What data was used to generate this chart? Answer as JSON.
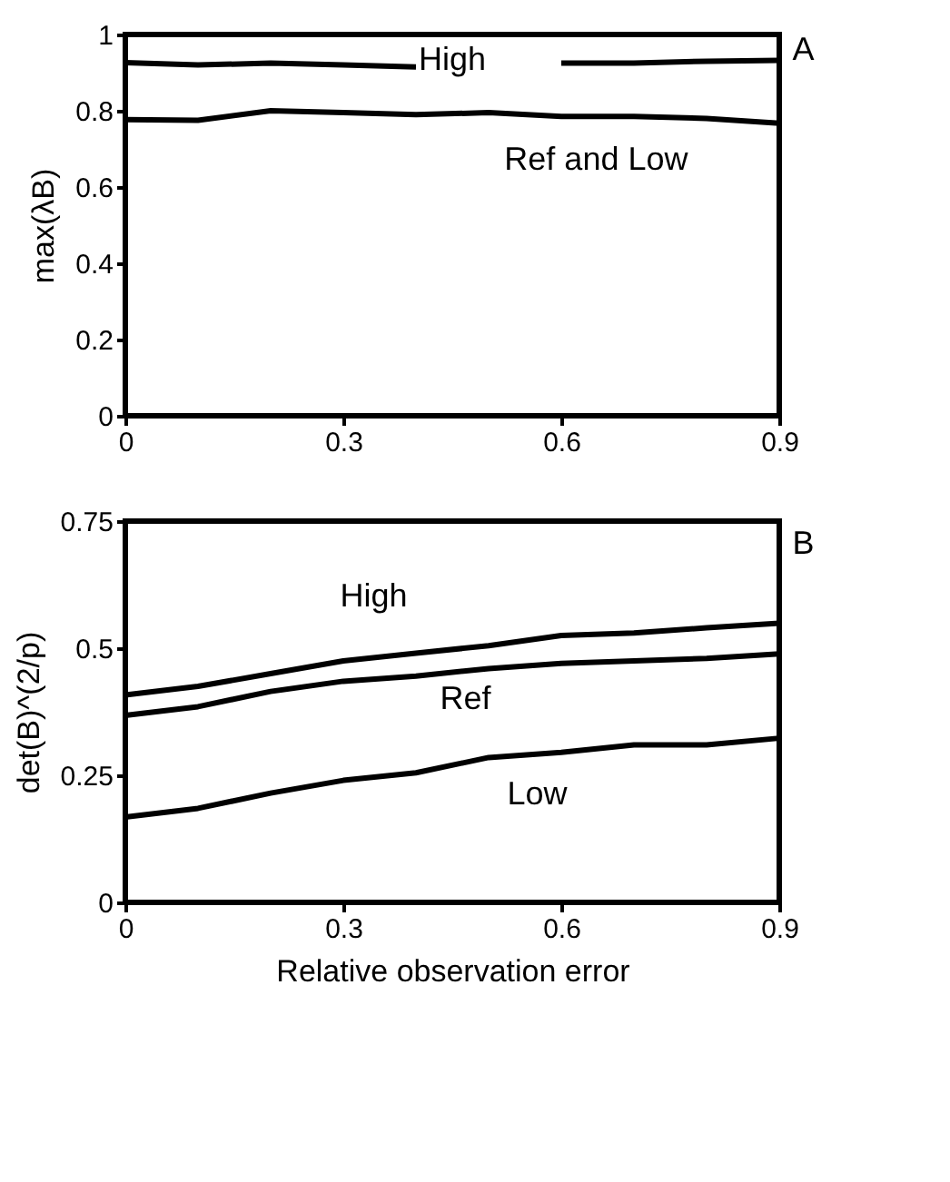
{
  "chart_data": [
    {
      "type": "line",
      "ylabel": "max(λB)",
      "x": [
        0,
        0.1,
        0.2,
        0.3,
        0.4,
        0.5,
        0.6,
        0.7,
        0.8,
        0.9
      ],
      "xlim": [
        0,
        0.9
      ],
      "xticks": [
        0,
        0.3,
        0.6,
        0.9
      ],
      "ylim": [
        0,
        1
      ],
      "yticks": [
        0,
        0.2,
        0.4,
        0.6,
        0.8,
        1
      ],
      "grid": false,
      "legend": false,
      "marker": "none",
      "line_style": "solid",
      "series": [
        {
          "color": "#000000",
          "values": [
            0.926,
            0.92,
            0.925,
            0.92,
            0.915,
            null,
            0.925,
            0.925,
            0.93,
            0.932
          ]
        },
        {
          "color": "#000000",
          "values": [
            0.777,
            0.775,
            0.8,
            0.795,
            0.79,
            0.795,
            0.785,
            0.785,
            0.78,
            0.767
          ]
        }
      ],
      "annotations": [
        "High",
        "Ref and Low",
        "A"
      ]
    },
    {
      "type": "line",
      "xlabel": "Relative observation error",
      "ylabel": "det(B)^(2/p)",
      "x": [
        0,
        0.1,
        0.2,
        0.3,
        0.4,
        0.5,
        0.6,
        0.7,
        0.8,
        0.9
      ],
      "xlim": [
        0,
        0.9
      ],
      "xticks": [
        0,
        0.3,
        0.6,
        0.9
      ],
      "ylim": [
        0,
        0.75
      ],
      "yticks": [
        0,
        0.25,
        0.5,
        0.75
      ],
      "grid": false,
      "legend": false,
      "marker": "none",
      "line_style": "solid",
      "series": [
        {
          "color": "#000000",
          "values": [
            0.408,
            0.425,
            0.45,
            0.475,
            0.49,
            0.505,
            0.525,
            0.53,
            0.54,
            0.549
          ]
        },
        {
          "color": "#000000",
          "values": [
            0.368,
            0.385,
            0.415,
            0.435,
            0.445,
            0.46,
            0.47,
            0.475,
            0.48,
            0.489
          ]
        },
        {
          "color": "#000000",
          "values": [
            0.168,
            0.185,
            0.215,
            0.24,
            0.255,
            0.285,
            0.295,
            0.31,
            0.31,
            0.323
          ]
        }
      ],
      "annotations": [
        "High",
        "Ref",
        "Low",
        "B"
      ]
    }
  ]
}
